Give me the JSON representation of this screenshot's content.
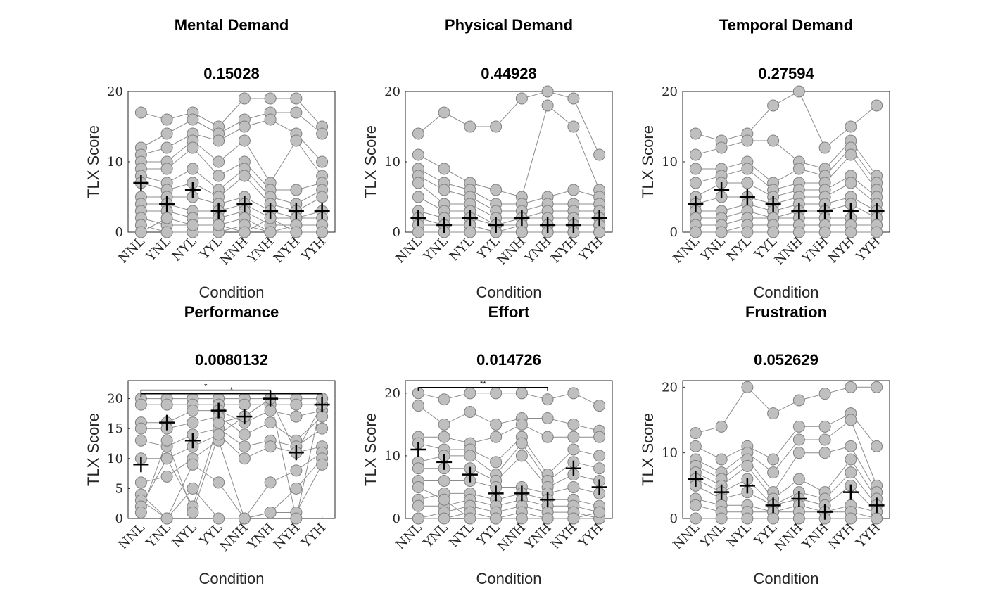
{
  "conditions": [
    "NNL",
    "YNL",
    "NYL",
    "YYL",
    "NNH",
    "YNH",
    "NYH",
    "YYH"
  ],
  "ylabel": "TLX Score",
  "xlabel": "Condition",
  "colors": {
    "point_fill": "#bfbfbf",
    "point_edge": "#808080",
    "line": "#8c8c8c",
    "median": "#000000",
    "axis": "#262626"
  },
  "chart_data": [
    {
      "type": "scatter",
      "title": "Mental Demand",
      "pvalue": "0.15028",
      "ylim": [
        0,
        20
      ],
      "yticks": [
        0,
        10,
        20
      ],
      "medians": [
        7,
        4,
        6,
        3,
        4,
        3,
        3,
        3
      ],
      "participants": [
        [
          17,
          16,
          17,
          15,
          19,
          19,
          19,
          15
        ],
        [
          12,
          14,
          16,
          14,
          16,
          17,
          17,
          14
        ],
        [
          11,
          12,
          14,
          13,
          15,
          16,
          14,
          10
        ],
        [
          10,
          10,
          13,
          10,
          13,
          7,
          13,
          8
        ],
        [
          9,
          9,
          12,
          8,
          10,
          6,
          6,
          7
        ],
        [
          8,
          7,
          9,
          6,
          9,
          5,
          4,
          6
        ],
        [
          7,
          6,
          7,
          5,
          8,
          4,
          3,
          5
        ],
        [
          5,
          5,
          5,
          4,
          5,
          3,
          2,
          3
        ],
        [
          4,
          4,
          3,
          3,
          4,
          2,
          2,
          2
        ],
        [
          3,
          3,
          2,
          2,
          3,
          1,
          1,
          1
        ],
        [
          2,
          1,
          1,
          1,
          2,
          0,
          0,
          0
        ],
        [
          1,
          0,
          0,
          0,
          1,
          0,
          1,
          1
        ],
        [
          0,
          2,
          1,
          1,
          0,
          2,
          0,
          0
        ]
      ],
      "significance": []
    },
    {
      "type": "scatter",
      "title": "Physical Demand",
      "pvalue": "0.44928",
      "ylim": [
        0,
        20
      ],
      "yticks": [
        0,
        10,
        20
      ],
      "medians": [
        2,
        1,
        2,
        1,
        2,
        1,
        1,
        2
      ],
      "participants": [
        [
          14,
          17,
          15,
          15,
          19,
          20,
          19,
          11
        ],
        [
          11,
          9,
          7,
          6,
          5,
          18,
          15,
          6
        ],
        [
          9,
          7,
          6,
          4,
          4,
          5,
          6,
          5
        ],
        [
          8,
          6,
          5,
          3,
          3,
          4,
          4,
          4
        ],
        [
          7,
          4,
          4,
          2,
          2,
          3,
          3,
          3
        ],
        [
          5,
          3,
          3,
          1,
          2,
          2,
          2,
          2
        ],
        [
          3,
          2,
          2,
          1,
          1,
          1,
          1,
          1
        ],
        [
          2,
          1,
          1,
          0,
          1,
          1,
          1,
          1
        ],
        [
          1,
          1,
          1,
          0,
          0,
          0,
          0,
          0
        ],
        [
          0,
          0,
          0,
          0,
          0,
          0,
          0,
          0
        ]
      ],
      "significance": []
    },
    {
      "type": "scatter",
      "title": "Temporal Demand",
      "pvalue": "0.27594",
      "ylim": [
        0,
        20
      ],
      "yticks": [
        0,
        10,
        20
      ],
      "medians": [
        4,
        6,
        5,
        4,
        3,
        3,
        3,
        3
      ],
      "participants": [
        [
          14,
          13,
          14,
          18,
          20,
          12,
          15,
          18
        ],
        [
          11,
          12,
          13,
          13,
          10,
          9,
          13,
          8
        ],
        [
          9,
          9,
          10,
          7,
          9,
          8,
          12,
          7
        ],
        [
          7,
          8,
          9,
          6,
          7,
          7,
          11,
          6
        ],
        [
          5,
          7,
          7,
          5,
          6,
          6,
          8,
          5
        ],
        [
          4,
          5,
          5,
          4,
          5,
          5,
          7,
          4
        ],
        [
          3,
          3,
          4,
          3,
          4,
          4,
          5,
          3
        ],
        [
          2,
          2,
          3,
          2,
          3,
          3,
          4,
          2
        ],
        [
          1,
          1,
          2,
          2,
          2,
          2,
          2,
          2
        ],
        [
          0,
          0,
          1,
          1,
          1,
          1,
          1,
          1
        ],
        [
          0,
          0,
          0,
          0,
          0,
          0,
          0,
          0
        ]
      ],
      "significance": []
    },
    {
      "type": "scatter",
      "title": "Performance",
      "pvalue": "0.0080132",
      "ylim": [
        0,
        23
      ],
      "yticks": [
        0,
        5,
        10,
        15,
        20
      ],
      "medians": [
        9,
        16,
        13,
        18,
        17,
        20,
        11,
        19
      ],
      "participants": [
        [
          20,
          20,
          20,
          20,
          20,
          20,
          20,
          20
        ],
        [
          19,
          19,
          19,
          19,
          19,
          19,
          19,
          19
        ],
        [
          16,
          16,
          18,
          18,
          16,
          18,
          17,
          18
        ],
        [
          15,
          15,
          16,
          17,
          14,
          16,
          13,
          17
        ],
        [
          13,
          12,
          14,
          15,
          12,
          13,
          12,
          15
        ],
        [
          10,
          10,
          12,
          14,
          10,
          12,
          11,
          12
        ],
        [
          6,
          7,
          10,
          13,
          0,
          6,
          8,
          11
        ],
        [
          4,
          0,
          9,
          6,
          0,
          1,
          5,
          10
        ],
        [
          3,
          0,
          5,
          0,
          0,
          1,
          1,
          9
        ],
        [
          2,
          10,
          2,
          16,
          17,
          20,
          11,
          19
        ],
        [
          1,
          13,
          1,
          14,
          17,
          20,
          0,
          20
        ]
      ],
      "significance": [
        {
          "from": 0,
          "to": 5,
          "level": 21.4,
          "label": "*"
        },
        {
          "from": 0,
          "to": 7,
          "level": 20.8,
          "label": "*"
        }
      ]
    },
    {
      "type": "scatter",
      "title": "Effort",
      "pvalue": "0.014726",
      "ylim": [
        0,
        22
      ],
      "yticks": [
        0,
        10,
        20
      ],
      "medians": [
        11,
        9,
        7,
        4,
        4,
        3,
        8,
        5
      ],
      "participants": [
        [
          20,
          19,
          20,
          20,
          20,
          19,
          20,
          18
        ],
        [
          18,
          15,
          17,
          15,
          16,
          16,
          15,
          14
        ],
        [
          13,
          13,
          12,
          13,
          15,
          13,
          13,
          13
        ],
        [
          12,
          11,
          11,
          9,
          13,
          7,
          11,
          10
        ],
        [
          9,
          10,
          10,
          7,
          12,
          6,
          9,
          8
        ],
        [
          8,
          8,
          8,
          6,
          10,
          5,
          7,
          6
        ],
        [
          6,
          6,
          6,
          5,
          5,
          4,
          5,
          4
        ],
        [
          3,
          4,
          4,
          3,
          4,
          3,
          3,
          2
        ],
        [
          2,
          2,
          3,
          2,
          3,
          2,
          2,
          1
        ],
        [
          0,
          1,
          2,
          1,
          2,
          1,
          1,
          0
        ],
        [
          0,
          0,
          1,
          0,
          1,
          0,
          0,
          0
        ],
        [
          5,
          3,
          0,
          0,
          0,
          0,
          0,
          1
        ]
      ],
      "significance": [
        {
          "from": 0,
          "to": 5,
          "level": 20.9,
          "label": "**"
        }
      ]
    },
    {
      "type": "scatter",
      "title": "Frustration",
      "pvalue": "0.052629",
      "ylim": [
        0,
        21
      ],
      "yticks": [
        0,
        10,
        20
      ],
      "medians": [
        6,
        4,
        5,
        2,
        3,
        1,
        4,
        2
      ],
      "participants": [
        [
          13,
          14,
          20,
          16,
          18,
          19,
          20,
          20
        ],
        [
          11,
          9,
          11,
          9,
          14,
          14,
          16,
          11
        ],
        [
          9,
          7,
          10,
          7,
          12,
          12,
          15,
          5
        ],
        [
          8,
          6,
          9,
          4,
          10,
          10,
          11,
          4
        ],
        [
          7,
          5,
          8,
          3,
          6,
          4,
          9,
          3
        ],
        [
          6,
          4,
          6,
          2,
          4,
          3,
          7,
          2
        ],
        [
          5,
          3,
          4,
          2,
          3,
          2,
          5,
          1
        ],
        [
          3,
          2,
          2,
          1,
          2,
          1,
          2,
          1
        ],
        [
          2,
          1,
          1,
          1,
          1,
          1,
          1,
          0
        ],
        [
          0,
          0,
          0,
          0,
          0,
          0,
          0,
          0
        ]
      ],
      "significance": []
    }
  ]
}
